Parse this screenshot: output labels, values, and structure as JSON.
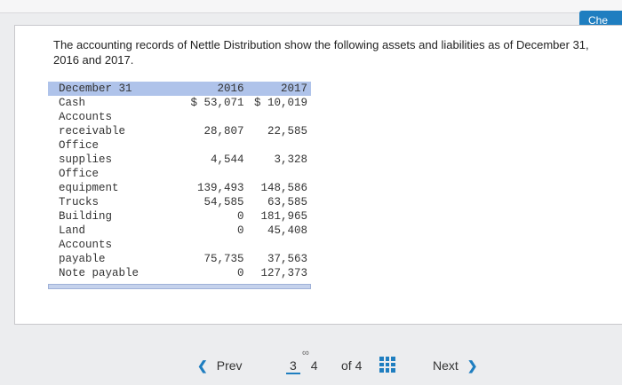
{
  "header": {
    "check_label": "Che"
  },
  "intro_text": "The accounting records of Nettle Distribution show the following assets and liabilities as of December 31, 2016 and 2017.",
  "table": {
    "headers": [
      "December 31",
      "2016",
      "2017"
    ],
    "rows": [
      {
        "label": "Cash",
        "v2016": "$ 53,071",
        "v2017": "$ 10,019"
      },
      {
        "label": "Accounts\nreceivable",
        "v2016": "28,807",
        "v2017": "22,585"
      },
      {
        "label": "Office\nsupplies",
        "v2016": "4,544",
        "v2017": "3,328"
      },
      {
        "label": "Office\nequipment",
        "v2016": "139,493",
        "v2017": "148,586"
      },
      {
        "label": "Trucks",
        "v2016": "54,585",
        "v2017": "63,585"
      },
      {
        "label": "Building",
        "v2016": "0",
        "v2017": "181,965"
      },
      {
        "label": "Land",
        "v2016": "0",
        "v2017": "45,408"
      },
      {
        "label": "Accounts\npayable",
        "v2016": "75,735",
        "v2017": "37,563"
      },
      {
        "label": "Note payable",
        "v2016": "0",
        "v2017": "127,373"
      }
    ]
  },
  "pagination": {
    "prev_label": "Prev",
    "pages": [
      "3",
      "4"
    ],
    "current_page": "3",
    "of_label": "of 4",
    "next_label": "Next"
  },
  "colors": {
    "accent": "#1f7ec0",
    "table_header_bg": "#afc3ea"
  }
}
